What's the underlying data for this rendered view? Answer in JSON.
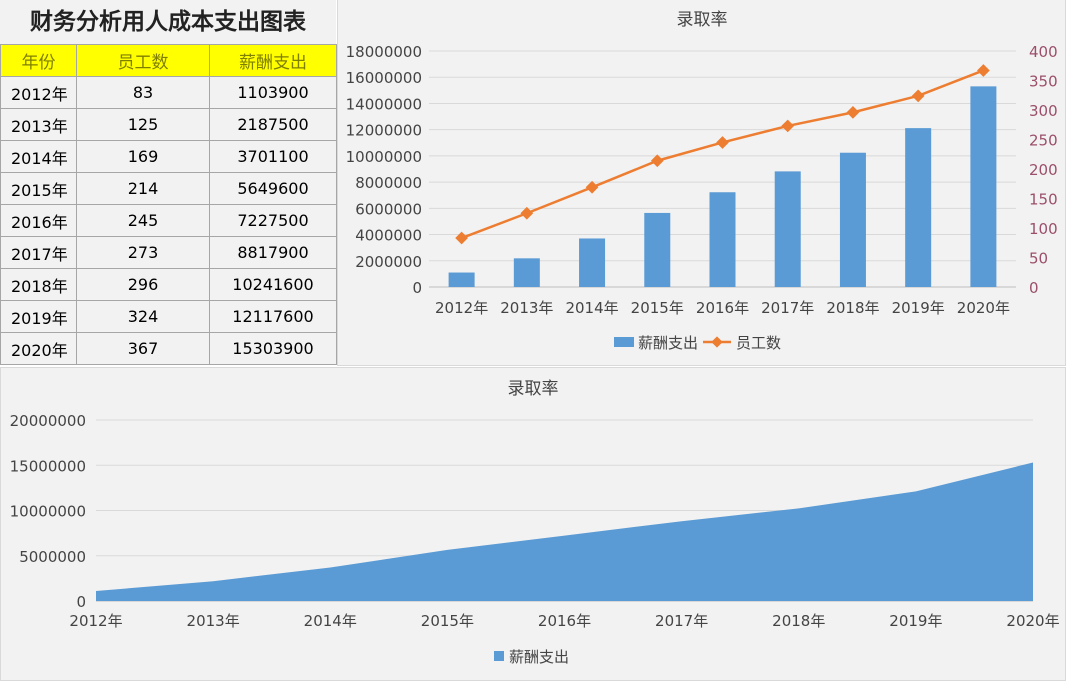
{
  "sheet_title": "财务分析用人成本支出图表",
  "table": {
    "headers": [
      "年份",
      "员工数",
      "薪酬支出"
    ],
    "rows": [
      [
        "2012年",
        "83",
        "1103900"
      ],
      [
        "2013年",
        "125",
        "2187500"
      ],
      [
        "2014年",
        "169",
        "3701100"
      ],
      [
        "2015年",
        "214",
        "5649600"
      ],
      [
        "2016年",
        "245",
        "7227500"
      ],
      [
        "2017年",
        "273",
        "8817900"
      ],
      [
        "2018年",
        "296",
        "10241600"
      ],
      [
        "2019年",
        "324",
        "12117600"
      ],
      [
        "2020年",
        "367",
        "15303900"
      ]
    ]
  },
  "colors": {
    "bar": "#5B9BD5",
    "line": "#ED7D31",
    "right_axis": "#9B4F6B",
    "grid": "#d9d9d9"
  },
  "chart_data": [
    {
      "type": "bar+line",
      "title": "录取率",
      "categories": [
        "2012年",
        "2013年",
        "2014年",
        "2015年",
        "2016年",
        "2017年",
        "2018年",
        "2019年",
        "2020年"
      ],
      "series": [
        {
          "name": "薪酬支出",
          "type": "bar",
          "axis": "left",
          "values": [
            1103900,
            2187500,
            3701100,
            5649600,
            7227500,
            8817900,
            10241600,
            12117600,
            15303900
          ]
        },
        {
          "name": "员工数",
          "type": "line",
          "axis": "right",
          "values": [
            83,
            125,
            169,
            214,
            245,
            273,
            296,
            324,
            367
          ]
        }
      ],
      "ylim": [
        0,
        18000000
      ],
      "yticks": [
        "0",
        "2000000",
        "4000000",
        "6000000",
        "8000000",
        "10000000",
        "12000000",
        "14000000",
        "16000000",
        "18000000"
      ],
      "y2lim": [
        0,
        400
      ],
      "y2ticks": [
        "0",
        "50",
        "100",
        "150",
        "200",
        "250",
        "300",
        "350",
        "400"
      ],
      "legend": "bottom",
      "grid": true
    },
    {
      "type": "area",
      "title": "录取率",
      "categories": [
        "2012年",
        "2013年",
        "2014年",
        "2015年",
        "2016年",
        "2017年",
        "2018年",
        "2019年",
        "2020年"
      ],
      "series": [
        {
          "name": "薪酬支出",
          "values": [
            1103900,
            2187500,
            3701100,
            5649600,
            7227500,
            8817900,
            10241600,
            12117600,
            15303900
          ]
        }
      ],
      "ylim": [
        0,
        20000000
      ],
      "yticks": [
        "0",
        "5000000",
        "10000000",
        "15000000",
        "20000000"
      ],
      "legend": "bottom",
      "grid": true
    }
  ]
}
